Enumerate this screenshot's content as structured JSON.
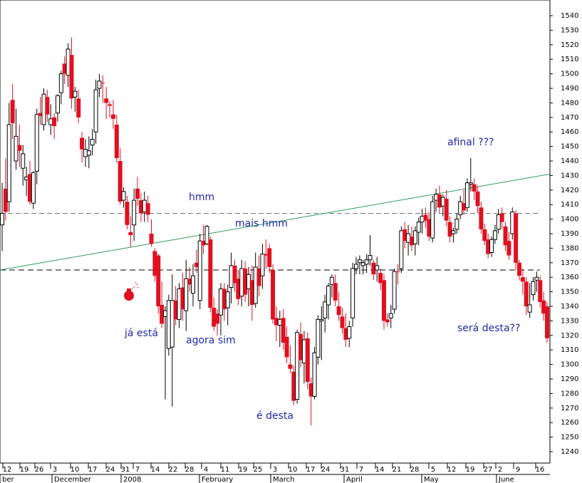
{
  "chart_data": {
    "type": "candlestick",
    "y_axis": {
      "min": 1230,
      "max": 1550,
      "ticks": [
        1240,
        1250,
        1260,
        1270,
        1280,
        1290,
        1300,
        1310,
        1320,
        1330,
        1340,
        1350,
        1360,
        1370,
        1380,
        1390,
        1400,
        1410,
        1420,
        1430,
        1440,
        1450,
        1460,
        1470,
        1480,
        1490,
        1500,
        1510,
        1520,
        1530,
        1540
      ],
      "position": "right"
    },
    "x_axis": {
      "day_ticks": [
        "12",
        "19",
        "26",
        "3",
        "10",
        "17",
        "24",
        "31",
        "7",
        "14",
        "22",
        "28",
        "4",
        "11",
        "19",
        "25",
        "3",
        "10",
        "17",
        "24",
        "31",
        "7",
        "14",
        "21",
        "28",
        "5",
        "12",
        "19",
        "27",
        "2",
        "9",
        "16"
      ],
      "month_labels": [
        "ber",
        "December",
        "2008",
        "February",
        "March",
        "April",
        "May",
        "June"
      ]
    },
    "reference_lines": [
      {
        "style": "dashed-gray",
        "value": 1404
      },
      {
        "style": "dashed-black",
        "value": 1365
      }
    ],
    "trendline": {
      "color": "#2e9e5b",
      "from_value": 1365,
      "to_value": 1431
    },
    "annotations": [
      "hmm",
      "mais hmm",
      "já está",
      "agora sim",
      "é desta",
      "afinal ???",
      "será desta??"
    ],
    "candles": [
      {
        "o": 1396,
        "h": 1425,
        "l": 1378,
        "c": 1404,
        "up": true
      },
      {
        "o": 1421,
        "h": 1442,
        "l": 1399,
        "c": 1405,
        "up": false
      },
      {
        "o": 1412,
        "h": 1480,
        "l": 1405,
        "c": 1465,
        "up": true
      },
      {
        "o": 1466,
        "h": 1493,
        "l": 1455,
        "c": 1482,
        "up": false
      },
      {
        "o": 1440,
        "h": 1476,
        "l": 1434,
        "c": 1457,
        "up": true
      },
      {
        "o": 1451,
        "h": 1465,
        "l": 1436,
        "c": 1447,
        "up": false
      },
      {
        "o": 1435,
        "h": 1451,
        "l": 1423,
        "c": 1445,
        "up": true
      },
      {
        "o": 1427,
        "h": 1436,
        "l": 1416,
        "c": 1429,
        "up": true
      },
      {
        "o": 1431,
        "h": 1440,
        "l": 1410,
        "c": 1412,
        "up": false
      },
      {
        "o": 1411,
        "h": 1433,
        "l": 1407,
        "c": 1432,
        "up": true
      },
      {
        "o": 1433,
        "h": 1476,
        "l": 1424,
        "c": 1472,
        "up": true
      },
      {
        "o": 1471,
        "h": 1484,
        "l": 1465,
        "c": 1473,
        "up": false
      },
      {
        "o": 1465,
        "h": 1490,
        "l": 1461,
        "c": 1486,
        "up": true
      },
      {
        "o": 1484,
        "h": 1489,
        "l": 1467,
        "c": 1472,
        "up": false
      },
      {
        "o": 1469,
        "h": 1479,
        "l": 1458,
        "c": 1465,
        "up": true
      },
      {
        "o": 1464,
        "h": 1473,
        "l": 1455,
        "c": 1470,
        "up": false
      },
      {
        "o": 1473,
        "h": 1486,
        "l": 1467,
        "c": 1485,
        "up": true
      },
      {
        "o": 1487,
        "h": 1502,
        "l": 1479,
        "c": 1500,
        "up": true
      },
      {
        "o": 1500,
        "h": 1512,
        "l": 1493,
        "c": 1507,
        "up": false
      },
      {
        "o": 1499,
        "h": 1521,
        "l": 1491,
        "c": 1517,
        "up": true
      },
      {
        "o": 1513,
        "h": 1525,
        "l": 1476,
        "c": 1483,
        "up": false
      },
      {
        "o": 1484,
        "h": 1491,
        "l": 1474,
        "c": 1488,
        "up": true
      },
      {
        "o": 1483,
        "h": 1489,
        "l": 1466,
        "c": 1470,
        "up": false
      },
      {
        "o": 1456,
        "h": 1460,
        "l": 1439,
        "c": 1448,
        "up": false
      },
      {
        "o": 1448,
        "h": 1455,
        "l": 1436,
        "c": 1443,
        "up": true
      },
      {
        "o": 1444,
        "h": 1457,
        "l": 1435,
        "c": 1447,
        "up": true
      },
      {
        "o": 1455,
        "h": 1462,
        "l": 1444,
        "c": 1451,
        "up": true
      },
      {
        "o": 1460,
        "h": 1496,
        "l": 1452,
        "c": 1489,
        "up": true
      },
      {
        "o": 1490,
        "h": 1500,
        "l": 1484,
        "c": 1495,
        "up": true
      },
      {
        "o": 1494,
        "h": 1499,
        "l": 1480,
        "c": 1494,
        "up": false
      },
      {
        "o": 1483,
        "h": 1491,
        "l": 1469,
        "c": 1480,
        "up": false
      },
      {
        "o": 1479,
        "h": 1481,
        "l": 1470,
        "c": 1478,
        "up": false
      },
      {
        "o": 1472,
        "h": 1482,
        "l": 1462,
        "c": 1469,
        "up": false
      },
      {
        "o": 1465,
        "h": 1472,
        "l": 1439,
        "c": 1442,
        "up": false
      },
      {
        "o": 1440,
        "h": 1449,
        "l": 1410,
        "c": 1412,
        "up": false
      },
      {
        "o": 1413,
        "h": 1422,
        "l": 1408,
        "c": 1419,
        "up": true
      },
      {
        "o": 1412,
        "h": 1416,
        "l": 1393,
        "c": 1396,
        "up": false
      },
      {
        "o": 1389,
        "h": 1402,
        "l": 1381,
        "c": 1391,
        "up": false
      },
      {
        "o": 1396,
        "h": 1421,
        "l": 1385,
        "c": 1413,
        "up": true
      },
      {
        "o": 1421,
        "h": 1429,
        "l": 1409,
        "c": 1414,
        "up": false
      },
      {
        "o": 1413,
        "h": 1418,
        "l": 1398,
        "c": 1404,
        "up": false
      },
      {
        "o": 1405,
        "h": 1419,
        "l": 1398,
        "c": 1413,
        "up": true
      },
      {
        "o": 1411,
        "h": 1416,
        "l": 1398,
        "c": 1403,
        "up": false
      },
      {
        "o": 1390,
        "h": 1400,
        "l": 1381,
        "c": 1383,
        "up": false
      },
      {
        "o": 1378,
        "h": 1380,
        "l": 1357,
        "c": 1361,
        "up": false
      },
      {
        "o": 1375,
        "h": 1376,
        "l": 1335,
        "c": 1340,
        "up": false
      },
      {
        "o": 1341,
        "h": 1357,
        "l": 1325,
        "c": 1328,
        "up": false
      },
      {
        "o": 1337,
        "h": 1340,
        "l": 1276,
        "c": 1333,
        "up": true
      },
      {
        "o": 1311,
        "h": 1348,
        "l": 1306,
        "c": 1344,
        "up": true
      },
      {
        "o": 1344,
        "h": 1362,
        "l": 1271,
        "c": 1312,
        "up": true
      },
      {
        "o": 1344,
        "h": 1354,
        "l": 1327,
        "c": 1331,
        "up": false
      },
      {
        "o": 1331,
        "h": 1356,
        "l": 1325,
        "c": 1352,
        "up": true
      },
      {
        "o": 1353,
        "h": 1363,
        "l": 1330,
        "c": 1338,
        "up": false
      },
      {
        "o": 1337,
        "h": 1372,
        "l": 1323,
        "c": 1359,
        "up": true
      },
      {
        "o": 1359,
        "h": 1367,
        "l": 1350,
        "c": 1355,
        "up": false
      },
      {
        "o": 1349,
        "h": 1369,
        "l": 1340,
        "c": 1361,
        "up": true
      },
      {
        "o": 1367,
        "h": 1379,
        "l": 1363,
        "c": 1370,
        "up": false
      },
      {
        "o": 1344,
        "h": 1390,
        "l": 1338,
        "c": 1385,
        "up": true
      },
      {
        "o": 1385,
        "h": 1396,
        "l": 1376,
        "c": 1382,
        "up": false
      },
      {
        "o": 1383,
        "h": 1396,
        "l": 1382,
        "c": 1395,
        "up": true
      },
      {
        "o": 1386,
        "h": 1388,
        "l": 1336,
        "c": 1339,
        "up": false
      },
      {
        "o": 1339,
        "h": 1346,
        "l": 1323,
        "c": 1326,
        "up": false
      },
      {
        "o": 1328,
        "h": 1338,
        "l": 1320,
        "c": 1335,
        "up": false
      },
      {
        "o": 1334,
        "h": 1356,
        "l": 1320,
        "c": 1352,
        "up": true
      },
      {
        "o": 1352,
        "h": 1356,
        "l": 1330,
        "c": 1338,
        "up": false
      },
      {
        "o": 1339,
        "h": 1355,
        "l": 1327,
        "c": 1350,
        "up": true
      },
      {
        "o": 1353,
        "h": 1377,
        "l": 1342,
        "c": 1368,
        "up": true
      },
      {
        "o": 1368,
        "h": 1372,
        "l": 1350,
        "c": 1356,
        "up": false
      },
      {
        "o": 1359,
        "h": 1365,
        "l": 1341,
        "c": 1345,
        "up": false
      },
      {
        "o": 1347,
        "h": 1372,
        "l": 1340,
        "c": 1366,
        "up": true
      },
      {
        "o": 1366,
        "h": 1371,
        "l": 1343,
        "c": 1348,
        "up": false
      },
      {
        "o": 1352,
        "h": 1367,
        "l": 1340,
        "c": 1362,
        "up": true
      },
      {
        "o": 1358,
        "h": 1368,
        "l": 1330,
        "c": 1341,
        "up": false
      },
      {
        "o": 1342,
        "h": 1377,
        "l": 1339,
        "c": 1367,
        "up": true
      },
      {
        "o": 1366,
        "h": 1375,
        "l": 1347,
        "c": 1354,
        "up": false
      },
      {
        "o": 1361,
        "h": 1383,
        "l": 1352,
        "c": 1376,
        "up": true
      },
      {
        "o": 1376,
        "h": 1386,
        "l": 1366,
        "c": 1375,
        "up": false
      },
      {
        "o": 1380,
        "h": 1383,
        "l": 1363,
        "c": 1367,
        "up": false
      },
      {
        "o": 1365,
        "h": 1369,
        "l": 1328,
        "c": 1331,
        "up": false
      },
      {
        "o": 1332,
        "h": 1340,
        "l": 1316,
        "c": 1327,
        "up": false
      },
      {
        "o": 1327,
        "h": 1337,
        "l": 1312,
        "c": 1331,
        "up": true
      },
      {
        "o": 1332,
        "h": 1338,
        "l": 1310,
        "c": 1315,
        "up": false
      },
      {
        "o": 1319,
        "h": 1326,
        "l": 1301,
        "c": 1305,
        "up": false
      },
      {
        "o": 1300,
        "h": 1313,
        "l": 1294,
        "c": 1297,
        "up": false
      },
      {
        "o": 1295,
        "h": 1299,
        "l": 1272,
        "c": 1275,
        "up": false
      },
      {
        "o": 1276,
        "h": 1324,
        "l": 1273,
        "c": 1322,
        "up": true
      },
      {
        "o": 1321,
        "h": 1329,
        "l": 1298,
        "c": 1303,
        "up": false
      },
      {
        "o": 1301,
        "h": 1323,
        "l": 1287,
        "c": 1317,
        "up": true
      },
      {
        "o": 1318,
        "h": 1322,
        "l": 1283,
        "c": 1288,
        "up": false
      },
      {
        "o": 1287,
        "h": 1291,
        "l": 1258,
        "c": 1278,
        "up": false
      },
      {
        "o": 1278,
        "h": 1312,
        "l": 1276,
        "c": 1308,
        "up": true
      },
      {
        "o": 1305,
        "h": 1334,
        "l": 1300,
        "c": 1331,
        "up": true
      },
      {
        "o": 1330,
        "h": 1340,
        "l": 1303,
        "c": 1331,
        "up": true
      },
      {
        "o": 1332,
        "h": 1348,
        "l": 1322,
        "c": 1343,
        "up": true
      },
      {
        "o": 1341,
        "h": 1356,
        "l": 1331,
        "c": 1354,
        "up": true
      },
      {
        "o": 1355,
        "h": 1362,
        "l": 1346,
        "c": 1360,
        "up": true
      },
      {
        "o": 1356,
        "h": 1362,
        "l": 1340,
        "c": 1344,
        "up": false
      },
      {
        "o": 1340,
        "h": 1350,
        "l": 1330,
        "c": 1334,
        "up": false
      },
      {
        "o": 1333,
        "h": 1339,
        "l": 1321,
        "c": 1325,
        "up": false
      },
      {
        "o": 1325,
        "h": 1335,
        "l": 1312,
        "c": 1317,
        "up": false
      },
      {
        "o": 1318,
        "h": 1330,
        "l": 1312,
        "c": 1326,
        "up": true
      },
      {
        "o": 1332,
        "h": 1370,
        "l": 1326,
        "c": 1366,
        "up": true
      },
      {
        "o": 1366,
        "h": 1374,
        "l": 1362,
        "c": 1369,
        "up": true
      },
      {
        "o": 1370,
        "h": 1375,
        "l": 1362,
        "c": 1372,
        "up": true
      },
      {
        "o": 1368,
        "h": 1372,
        "l": 1362,
        "c": 1370,
        "up": true
      },
      {
        "o": 1369,
        "h": 1376,
        "l": 1363,
        "c": 1372,
        "up": true
      },
      {
        "o": 1375,
        "h": 1389,
        "l": 1368,
        "c": 1372,
        "up": true
      },
      {
        "o": 1370,
        "h": 1372,
        "l": 1358,
        "c": 1362,
        "up": false
      },
      {
        "o": 1365,
        "h": 1374,
        "l": 1357,
        "c": 1368,
        "up": true
      },
      {
        "o": 1363,
        "h": 1366,
        "l": 1351,
        "c": 1356,
        "up": false
      },
      {
        "o": 1358,
        "h": 1362,
        "l": 1324,
        "c": 1330,
        "up": false
      },
      {
        "o": 1331,
        "h": 1335,
        "l": 1326,
        "c": 1329,
        "up": false
      },
      {
        "o": 1332,
        "h": 1341,
        "l": 1325,
        "c": 1335,
        "up": true
      },
      {
        "o": 1338,
        "h": 1366,
        "l": 1335,
        "c": 1364,
        "up": true
      },
      {
        "o": 1364,
        "h": 1369,
        "l": 1355,
        "c": 1364,
        "up": false
      },
      {
        "o": 1366,
        "h": 1395,
        "l": 1363,
        "c": 1392,
        "up": true
      },
      {
        "o": 1393,
        "h": 1398,
        "l": 1380,
        "c": 1385,
        "up": false
      },
      {
        "o": 1384,
        "h": 1396,
        "l": 1375,
        "c": 1390,
        "up": true
      },
      {
        "o": 1388,
        "h": 1395,
        "l": 1378,
        "c": 1382,
        "up": false
      },
      {
        "o": 1383,
        "h": 1395,
        "l": 1375,
        "c": 1392,
        "up": true
      },
      {
        "o": 1391,
        "h": 1401,
        "l": 1382,
        "c": 1398,
        "up": true
      },
      {
        "o": 1398,
        "h": 1407,
        "l": 1390,
        "c": 1402,
        "up": true
      },
      {
        "o": 1403,
        "h": 1408,
        "l": 1394,
        "c": 1399,
        "up": false
      },
      {
        "o": 1400,
        "h": 1405,
        "l": 1385,
        "c": 1388,
        "up": false
      },
      {
        "o": 1387,
        "h": 1416,
        "l": 1384,
        "c": 1412,
        "up": true
      },
      {
        "o": 1413,
        "h": 1421,
        "l": 1405,
        "c": 1417,
        "up": true
      },
      {
        "o": 1417,
        "h": 1423,
        "l": 1404,
        "c": 1408,
        "up": false
      },
      {
        "o": 1409,
        "h": 1417,
        "l": 1402,
        "c": 1415,
        "up": true
      },
      {
        "o": 1414,
        "h": 1420,
        "l": 1395,
        "c": 1399,
        "up": false
      },
      {
        "o": 1398,
        "h": 1402,
        "l": 1384,
        "c": 1388,
        "up": false
      },
      {
        "o": 1390,
        "h": 1394,
        "l": 1384,
        "c": 1392,
        "up": true
      },
      {
        "o": 1393,
        "h": 1404,
        "l": 1390,
        "c": 1400,
        "up": true
      },
      {
        "o": 1403,
        "h": 1416,
        "l": 1400,
        "c": 1412,
        "up": true
      },
      {
        "o": 1411,
        "h": 1420,
        "l": 1403,
        "c": 1406,
        "up": false
      },
      {
        "o": 1408,
        "h": 1428,
        "l": 1405,
        "c": 1425,
        "up": true
      },
      {
        "o": 1424,
        "h": 1442,
        "l": 1419,
        "c": 1425,
        "up": true
      },
      {
        "o": 1424,
        "h": 1428,
        "l": 1413,
        "c": 1419,
        "up": false
      },
      {
        "o": 1419,
        "h": 1423,
        "l": 1404,
        "c": 1409,
        "up": false
      },
      {
        "o": 1408,
        "h": 1412,
        "l": 1390,
        "c": 1393,
        "up": false
      },
      {
        "o": 1393,
        "h": 1397,
        "l": 1382,
        "c": 1385,
        "up": false
      },
      {
        "o": 1386,
        "h": 1390,
        "l": 1373,
        "c": 1376,
        "up": false
      },
      {
        "o": 1377,
        "h": 1388,
        "l": 1374,
        "c": 1386,
        "up": true
      },
      {
        "o": 1386,
        "h": 1396,
        "l": 1383,
        "c": 1392,
        "up": true
      },
      {
        "o": 1393,
        "h": 1407,
        "l": 1390,
        "c": 1403,
        "up": true
      },
      {
        "o": 1404,
        "h": 1408,
        "l": 1393,
        "c": 1398,
        "up": false
      },
      {
        "o": 1395,
        "h": 1398,
        "l": 1378,
        "c": 1382,
        "up": false
      },
      {
        "o": 1385,
        "h": 1391,
        "l": 1372,
        "c": 1375,
        "up": false
      },
      {
        "o": 1390,
        "h": 1408,
        "l": 1386,
        "c": 1405,
        "up": true
      },
      {
        "o": 1404,
        "h": 1406,
        "l": 1365,
        "c": 1370,
        "up": false
      },
      {
        "o": 1370,
        "h": 1372,
        "l": 1358,
        "c": 1361,
        "up": false
      },
      {
        "o": 1360,
        "h": 1366,
        "l": 1348,
        "c": 1357,
        "up": false
      },
      {
        "o": 1357,
        "h": 1360,
        "l": 1334,
        "c": 1340,
        "up": false
      },
      {
        "o": 1341,
        "h": 1356,
        "l": 1332,
        "c": 1336,
        "up": true
      },
      {
        "o": 1348,
        "h": 1360,
        "l": 1344,
        "c": 1357,
        "up": true
      },
      {
        "o": 1358,
        "h": 1364,
        "l": 1350,
        "c": 1360,
        "up": true
      },
      {
        "o": 1358,
        "h": 1361,
        "l": 1339,
        "c": 1343,
        "up": false
      },
      {
        "o": 1344,
        "h": 1350,
        "l": 1330,
        "c": 1335,
        "up": false
      },
      {
        "o": 1340,
        "h": 1343,
        "l": 1315,
        "c": 1318,
        "up": false
      }
    ]
  }
}
